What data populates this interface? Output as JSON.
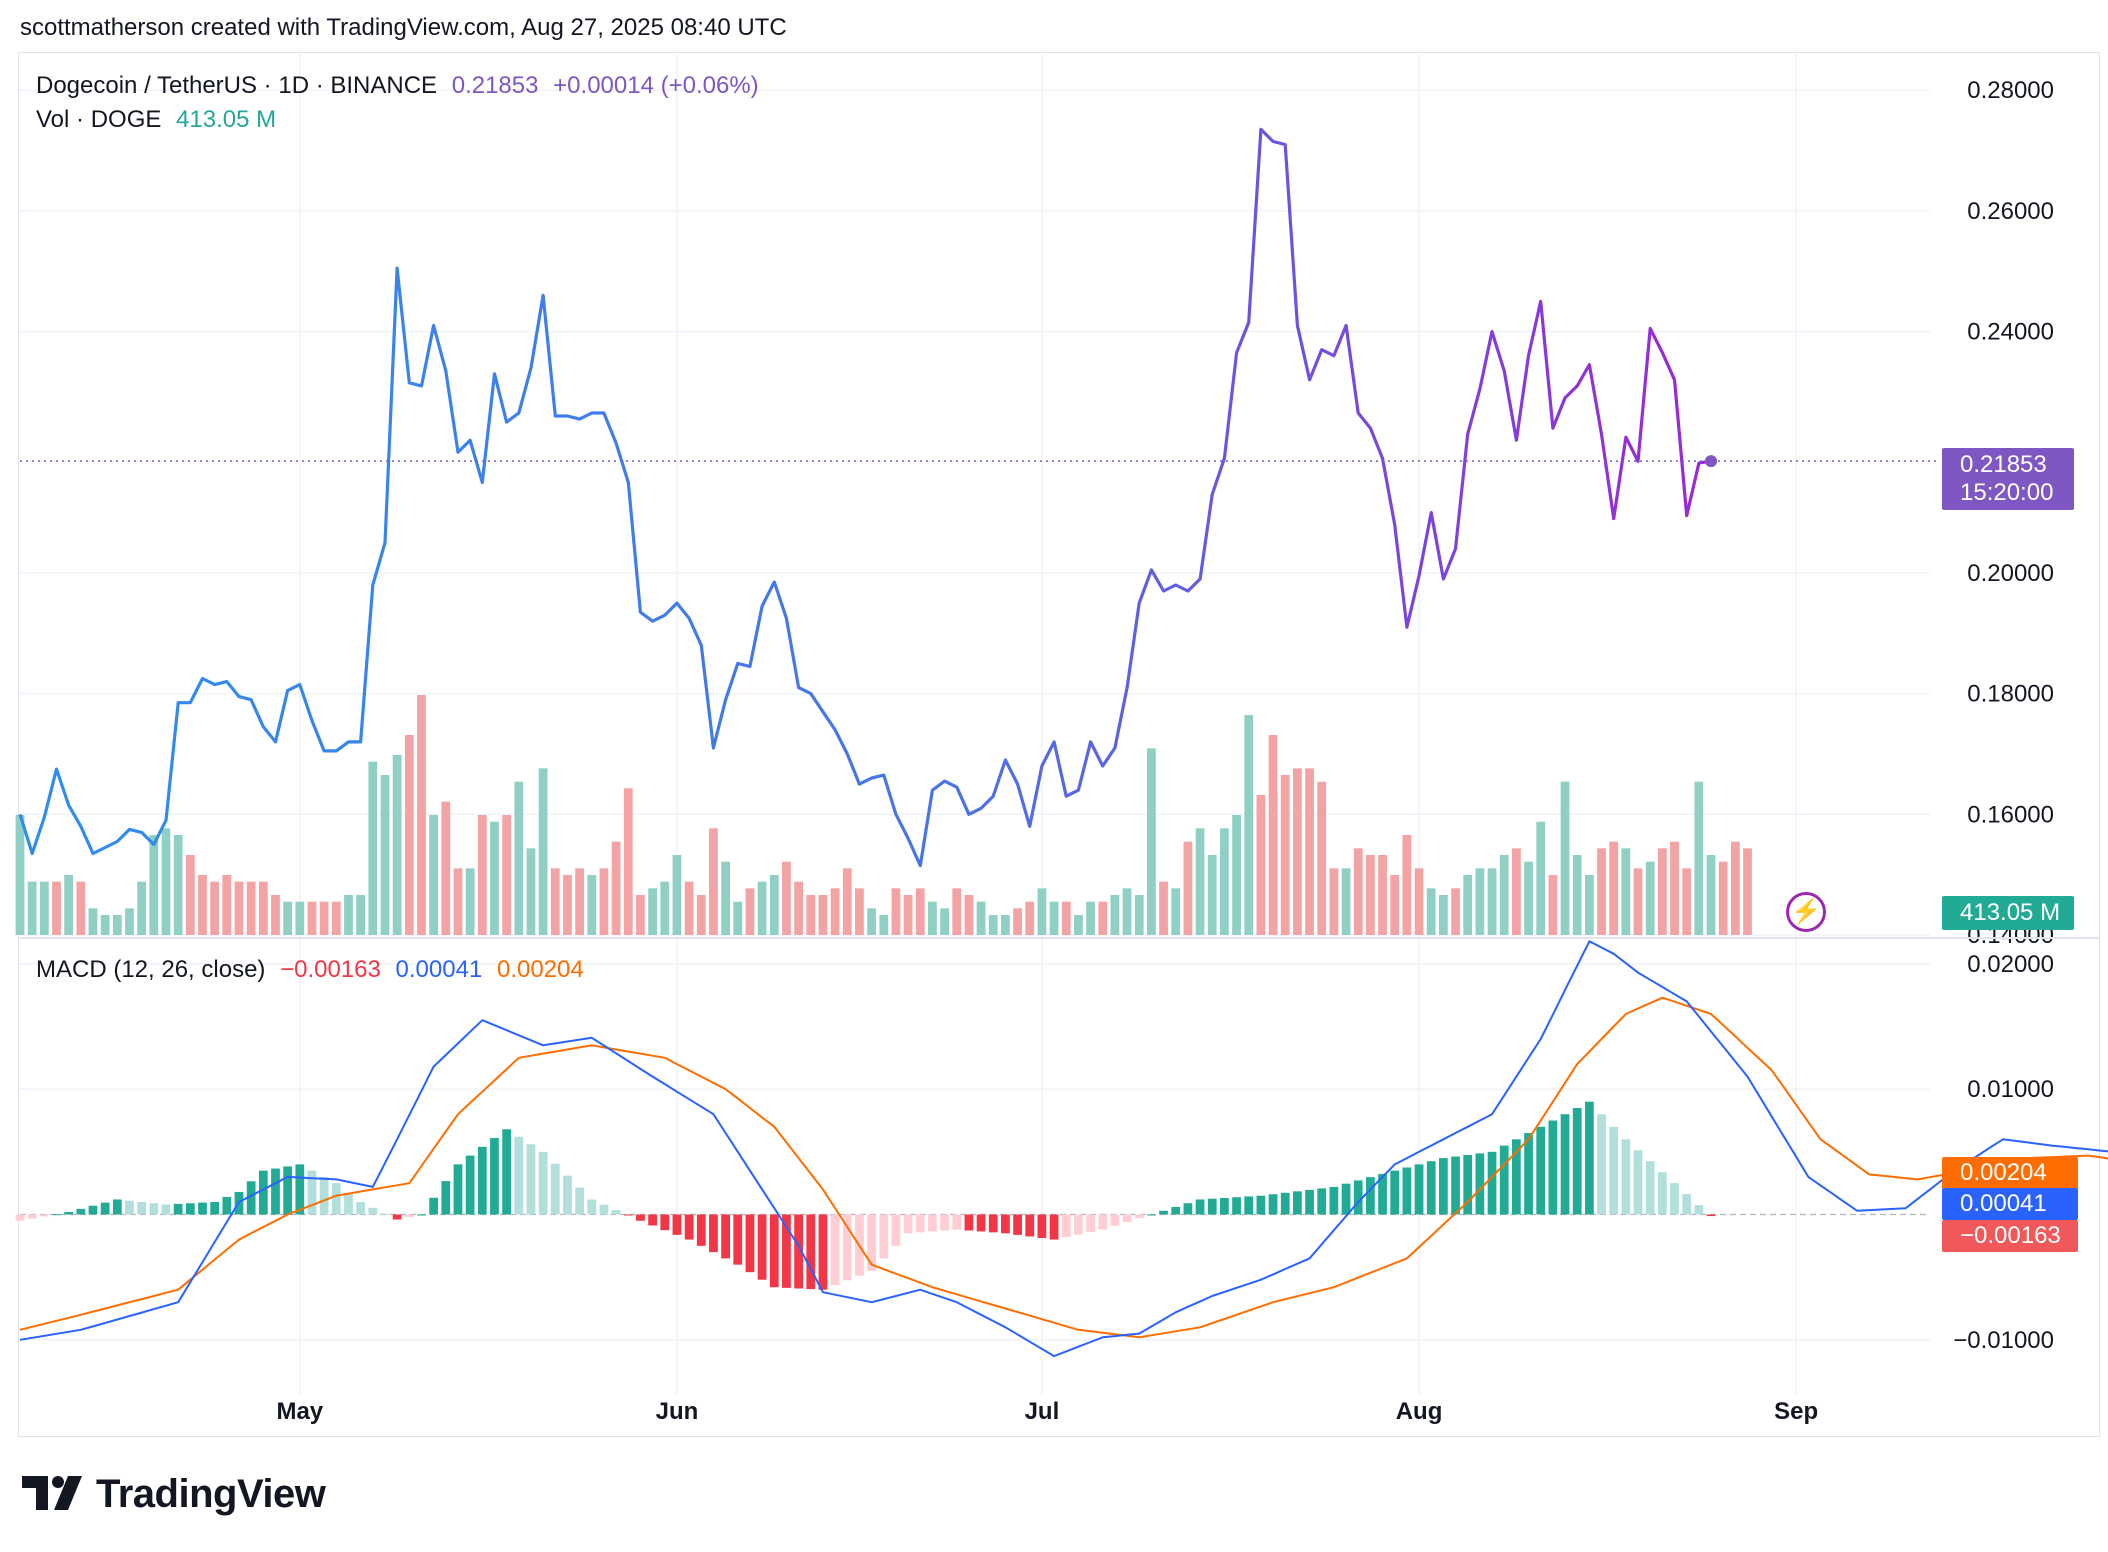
{
  "header": {
    "credit": "scottmatherson created with TradingView.com, Aug 27, 2025 08:40 UTC"
  },
  "legend": {
    "symbol": "Dogecoin / TetherUS · 1D · BINANCE",
    "price": "0.21853",
    "change": "+0.00014 (+0.06%)",
    "vol_label": "Vol · DOGE",
    "vol_value": "413.05 M",
    "macd_label": "MACD (12, 26, close)",
    "macd_hist": "−0.00163",
    "macd_line": "0.00041",
    "macd_signal": "0.00204"
  },
  "badges": {
    "price": "0.21853",
    "countdown": "15:20:00",
    "volume": "413.05 M",
    "macd_signal": "0.00204",
    "macd_line": "0.00041",
    "macd_hist": "−0.00163"
  },
  "logo": {
    "text": "TradingView"
  },
  "colors": {
    "price_line_start": "#2e8ef0",
    "price_line_end": "#9c27d6",
    "vol_up": "#8fcfc4",
    "vol_down": "#f3a3a3",
    "macd_line": "#2962ff",
    "signal_line": "#ff6d00",
    "hist_up_strong": "#22ab94",
    "hist_up_weak": "#b2dfdb",
    "hist_down_strong": "#f23645",
    "hist_down_weak": "#ffcdd2",
    "grid": "#f0f3fa"
  },
  "chart_data": [
    {
      "type": "line",
      "title": "Dogecoin / TetherUS · 1D · BINANCE",
      "x_ticks": [
        "May",
        "Jun",
        "Jul",
        "Aug",
        "Sep"
      ],
      "y_ticks": [
        "0.28000",
        "0.26000",
        "0.24000",
        "0.20000",
        "0.18000",
        "0.16000",
        "0.14000"
      ],
      "ylim": [
        0.14,
        0.285
      ],
      "x_range": [
        "2025-04-08",
        "2025-09-12"
      ],
      "start_date": "2025-04-08",
      "current_value": 0.21853,
      "series": [
        {
          "values": [
            0.16,
            0.1535,
            0.1595,
            0.1675,
            0.1615,
            0.158,
            0.1535,
            0.1545,
            0.1555,
            0.1575,
            0.157,
            0.155,
            0.159,
            0.1785,
            0.1785,
            0.1825,
            0.1815,
            0.182,
            0.1795,
            0.179,
            0.1745,
            0.172,
            0.1805,
            0.1815,
            0.1755,
            0.1705,
            0.1705,
            0.172,
            0.172,
            0.198,
            0.205,
            0.2505,
            0.2315,
            0.231,
            0.241,
            0.2335,
            0.22,
            0.222,
            0.215,
            0.233,
            0.225,
            0.2265,
            0.234,
            0.246,
            0.226,
            0.226,
            0.2255,
            0.2265,
            0.2265,
            0.2215,
            0.215,
            0.1935,
            0.192,
            0.193,
            0.195,
            0.1925,
            0.188,
            0.171,
            0.179,
            0.185,
            0.1845,
            0.1945,
            0.1985,
            0.1925,
            0.181,
            0.18,
            0.177,
            0.174,
            0.17,
            0.165,
            0.166,
            0.1665,
            0.16,
            0.156,
            0.1515,
            0.164,
            0.1655,
            0.1645,
            0.16,
            0.161,
            0.163,
            0.169,
            0.165,
            0.158,
            0.168,
            0.172,
            0.163,
            0.164,
            0.172,
            0.168,
            0.171,
            0.181,
            0.195,
            0.2005,
            0.197,
            0.198,
            0.197,
            0.199,
            0.213,
            0.219,
            0.2365,
            0.2415,
            0.2735,
            0.2715,
            0.271,
            0.241,
            0.232,
            0.237,
            0.236,
            0.241,
            0.2265,
            0.224,
            0.219,
            0.208,
            0.191,
            0.1995,
            0.21,
            0.199,
            0.204,
            0.223,
            0.2305,
            0.24,
            0.2335,
            0.222,
            0.236,
            0.245,
            0.224,
            0.229,
            0.231,
            0.2345,
            0.223,
            0.209,
            0.2225,
            0.2185,
            0.2405,
            0.2365,
            0.232,
            0.2095,
            0.2182,
            0.21853
          ]
        }
      ]
    },
    {
      "type": "bar",
      "title": "Vol · DOGE",
      "x_range": [
        "2025-04-08",
        "2025-09-12"
      ],
      "current_value": "413.05 M",
      "values": [
        18,
        8,
        8,
        8,
        9,
        8,
        4,
        3,
        3,
        4,
        8,
        15,
        16,
        15,
        12,
        9,
        8,
        9,
        8,
        8,
        8,
        6,
        5,
        5,
        5,
        5,
        5,
        6,
        6,
        26,
        24,
        27,
        30,
        36,
        18,
        20,
        10,
        10,
        18,
        17,
        18,
        23,
        13,
        25,
        10,
        9,
        10,
        9,
        10,
        14,
        22,
        6,
        7,
        8,
        12,
        8,
        6,
        16,
        11,
        5,
        7,
        8,
        9,
        11,
        8,
        6,
        6,
        7,
        10,
        7,
        4,
        3,
        7,
        6,
        7,
        5,
        4,
        7,
        6,
        5,
        3,
        3,
        4,
        5,
        7,
        5,
        5,
        3,
        5,
        5,
        6,
        7,
        6,
        28,
        8,
        7,
        14,
        16,
        12,
        16,
        18,
        33,
        21,
        30,
        24,
        25,
        25,
        23,
        10,
        10,
        13,
        12,
        12,
        9,
        15,
        10,
        7,
        6,
        7,
        9,
        10,
        10,
        12,
        13,
        11,
        17,
        9,
        23,
        12,
        9,
        13,
        14,
        13,
        10,
        11,
        13,
        14,
        10,
        23,
        12,
        11,
        14,
        13
      ],
      "up": [
        true,
        true,
        true,
        false,
        true,
        false,
        true,
        true,
        true,
        true,
        true,
        true,
        true,
        true,
        false,
        false,
        false,
        false,
        false,
        false,
        false,
        false,
        true,
        true,
        false,
        false,
        false,
        true,
        true,
        true,
        true,
        true,
        false,
        false,
        true,
        false,
        false,
        true,
        false,
        true,
        false,
        true,
        true,
        true,
        false,
        false,
        false,
        true,
        false,
        false,
        false,
        false,
        true,
        true,
        true,
        false,
        false,
        false,
        true,
        true,
        false,
        true,
        true,
        false,
        false,
        false,
        false,
        false,
        false,
        false,
        true,
        true,
        false,
        false,
        false,
        true,
        true,
        false,
        false,
        true,
        true,
        true,
        false,
        false,
        true,
        true,
        false,
        true,
        true,
        false,
        true,
        true,
        true,
        true,
        false,
        true,
        false,
        true,
        true,
        true,
        true,
        true,
        false,
        false,
        false,
        false,
        false,
        false,
        false,
        true,
        false,
        false,
        false,
        false,
        false,
        false,
        true,
        true,
        false,
        true,
        true,
        true,
        true,
        false,
        true,
        true,
        false,
        true,
        true,
        true,
        false,
        false,
        true,
        false,
        true,
        false,
        false,
        false,
        true,
        true
      ]
    },
    {
      "type": "line",
      "title": "MACD (12, 26, close)",
      "y_ticks": [
        "0.02000",
        "0.01000",
        "−0.01000"
      ],
      "ylim": [
        -0.0144,
        0.0219
      ],
      "x_range": [
        "2025-04-08",
        "2025-09-12"
      ],
      "current": {
        "histogram": -0.00163,
        "macd": 0.00041,
        "signal": 0.00204
      },
      "series": [
        {
          "name": "MACD",
          "anchors": [
            [
              0,
              -0.01
            ],
            [
              5,
              -0.0092
            ],
            [
              13,
              -0.007
            ],
            [
              18,
              0.001
            ],
            [
              22,
              0.003
            ],
            [
              26,
              0.0028
            ],
            [
              29,
              0.0022
            ],
            [
              31,
              0.006
            ],
            [
              34,
              0.0118
            ],
            [
              38,
              0.0155
            ],
            [
              43,
              0.0135
            ],
            [
              47,
              0.0141
            ],
            [
              52,
              0.011
            ],
            [
              57,
              0.008
            ],
            [
              61,
              0.002
            ],
            [
              64,
              -0.0025
            ],
            [
              66,
              -0.0062
            ],
            [
              70,
              -0.007
            ],
            [
              74,
              -0.006
            ],
            [
              77,
              -0.007
            ],
            [
              81,
              -0.009
            ],
            [
              85,
              -0.0113
            ],
            [
              89,
              -0.0098
            ],
            [
              92,
              -0.0095
            ],
            [
              95,
              -0.0078
            ],
            [
              98,
              -0.0065
            ],
            [
              102,
              -0.0052
            ],
            [
              106,
              -0.0035
            ],
            [
              110,
              0.001
            ],
            [
              113,
              0.004
            ],
            [
              117,
              0.006
            ],
            [
              121,
              0.008
            ],
            [
              125,
              0.014
            ],
            [
              129,
              0.0218
            ],
            [
              131,
              0.0208
            ],
            [
              133,
              0.0193
            ],
            [
              137,
              0.017
            ],
            [
              142,
              0.011
            ],
            [
              147,
              0.003
            ],
            [
              151,
              0.0003
            ],
            [
              155,
              0.0005
            ],
            [
              159,
              0.0035
            ],
            [
              163,
              0.006
            ],
            [
              167,
              0.0055
            ],
            [
              172,
              0.005
            ],
            [
              175,
              0.003
            ],
            [
              178,
              0.0025
            ],
            [
              182,
              0.003
            ],
            [
              187,
              0.0008
            ],
            [
              189,
              0.0004
            ]
          ]
        },
        {
          "name": "Signal",
          "anchors": [
            [
              0,
              -0.0092
            ],
            [
              5,
              -0.008
            ],
            [
              13,
              -0.006
            ],
            [
              18,
              -0.002
            ],
            [
              22,
              0.0
            ],
            [
              26,
              0.0015
            ],
            [
              29,
              0.002
            ],
            [
              32,
              0.0025
            ],
            [
              36,
              0.008
            ],
            [
              41,
              0.0125
            ],
            [
              47,
              0.0135
            ],
            [
              53,
              0.0125
            ],
            [
              58,
              0.01
            ],
            [
              62,
              0.007
            ],
            [
              66,
              0.002
            ],
            [
              70,
              -0.004
            ],
            [
              75,
              -0.0058
            ],
            [
              81,
              -0.0075
            ],
            [
              87,
              -0.0092
            ],
            [
              92,
              -0.0098
            ],
            [
              97,
              -0.009
            ],
            [
              103,
              -0.007
            ],
            [
              108,
              -0.0058
            ],
            [
              114,
              -0.0035
            ],
            [
              119,
              0.001
            ],
            [
              124,
              0.006
            ],
            [
              128,
              0.012
            ],
            [
              132,
              0.016
            ],
            [
              135,
              0.0173
            ],
            [
              139,
              0.016
            ],
            [
              144,
              0.0115
            ],
            [
              148,
              0.006
            ],
            [
              152,
              0.0032
            ],
            [
              156,
              0.0028
            ],
            [
              160,
              0.0035
            ],
            [
              165,
              0.0045
            ],
            [
              170,
              0.0047
            ],
            [
              175,
              0.004
            ],
            [
              180,
              0.0032
            ],
            [
              185,
              0.0028
            ],
            [
              189,
              0.002
            ]
          ]
        },
        {
          "name": "Histogram",
          "anchors": [
            [
              0,
              -0.0005
            ],
            [
              4,
              0.0002
            ],
            [
              8,
              0.0012
            ],
            [
              12,
              0.0008
            ],
            [
              16,
              0.001
            ],
            [
              18,
              0.0018
            ],
            [
              20,
              0.0035
            ],
            [
              23,
              0.004
            ],
            [
              26,
              0.0025
            ],
            [
              28,
              0.001
            ],
            [
              31,
              -0.0004
            ],
            [
              33,
              0.0
            ],
            [
              36,
              0.004
            ],
            [
              40,
              0.0068
            ],
            [
              43,
              0.005
            ],
            [
              47,
              0.0012
            ],
            [
              51,
              -0.0005
            ],
            [
              55,
              -0.002
            ],
            [
              59,
              -0.004
            ],
            [
              62,
              -0.0058
            ],
            [
              66,
              -0.006
            ],
            [
              70,
              -0.0045
            ],
            [
              73,
              -0.0015
            ],
            [
              77,
              -0.0012
            ],
            [
              81,
              -0.0015
            ],
            [
              85,
              -0.002
            ],
            [
              89,
              -0.0012
            ],
            [
              93,
              0.0
            ],
            [
              97,
              0.0012
            ],
            [
              102,
              0.0015
            ],
            [
              108,
              0.0022
            ],
            [
              113,
              0.0035
            ],
            [
              117,
              0.0045
            ],
            [
              121,
              0.005
            ],
            [
              125,
              0.007
            ],
            [
              129,
              0.009
            ],
            [
              132,
              0.006
            ],
            [
              136,
              0.0025
            ],
            [
              140,
              -0.001
            ],
            [
              144,
              -0.0048
            ],
            [
              147,
              -0.007
            ],
            [
              150,
              -0.006
            ],
            [
              153,
              -0.0035
            ],
            [
              156,
              -0.0008
            ],
            [
              159,
              0.0005
            ],
            [
              163,
              0.0012
            ],
            [
              166,
              0.002
            ],
            [
              170,
              0.0008
            ],
            [
              173,
              0.0003
            ],
            [
              176,
              0.0001
            ],
            [
              179,
              -0.0015
            ],
            [
              182,
              -0.0008
            ],
            [
              186,
              -0.0012
            ],
            [
              189,
              -0.0016
            ]
          ]
        }
      ]
    }
  ]
}
